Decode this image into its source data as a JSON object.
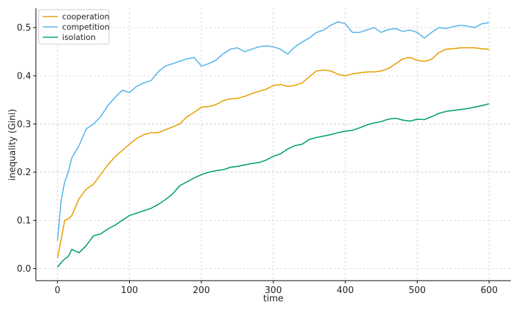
{
  "chart_data": {
    "type": "line",
    "title": "",
    "xlabel": "time",
    "ylabel": "inequality (Gini)",
    "xlim": [
      -30,
      630
    ],
    "ylim": [
      -0.025,
      0.54
    ],
    "xticks": [
      0,
      100,
      200,
      300,
      400,
      500,
      600
    ],
    "yticks": [
      0.0,
      0.1,
      0.2,
      0.3,
      0.4,
      0.5
    ],
    "xtick_labels": [
      "0",
      "100",
      "200",
      "300",
      "400",
      "500",
      "600"
    ],
    "ytick_labels": [
      "0.0",
      "0.1",
      "0.2",
      "0.3",
      "0.4",
      "0.5"
    ],
    "grid": true,
    "legend_position": "top-left",
    "series": [
      {
        "name": "cooperation",
        "color": "#E69F00",
        "x": [
          0,
          5,
          10,
          15,
          20,
          30,
          40,
          50,
          60,
          70,
          80,
          90,
          100,
          110,
          120,
          130,
          140,
          150,
          160,
          170,
          180,
          190,
          200,
          210,
          220,
          230,
          240,
          250,
          260,
          270,
          280,
          290,
          300,
          310,
          320,
          330,
          340,
          350,
          360,
          370,
          380,
          390,
          400,
          410,
          420,
          430,
          440,
          450,
          460,
          470,
          480,
          490,
          500,
          510,
          520,
          530,
          540,
          550,
          560,
          570,
          580,
          590,
          600
        ],
        "values": [
          0.022,
          0.06,
          0.1,
          0.103,
          0.11,
          0.145,
          0.165,
          0.175,
          0.195,
          0.215,
          0.232,
          0.245,
          0.258,
          0.27,
          0.278,
          0.282,
          0.282,
          0.288,
          0.294,
          0.3,
          0.315,
          0.324,
          0.335,
          0.336,
          0.34,
          0.348,
          0.352,
          0.353,
          0.357,
          0.363,
          0.368,
          0.372,
          0.38,
          0.382,
          0.378,
          0.38,
          0.385,
          0.398,
          0.41,
          0.412,
          0.41,
          0.403,
          0.4,
          0.404,
          0.406,
          0.408,
          0.408,
          0.41,
          0.415,
          0.425,
          0.435,
          0.438,
          0.432,
          0.43,
          0.434,
          0.448,
          0.455,
          0.456,
          0.458,
          0.458,
          0.458,
          0.456,
          0.455
        ]
      },
      {
        "name": "competition",
        "color": "#56B4E9",
        "x": [
          0,
          5,
          10,
          15,
          20,
          30,
          40,
          50,
          60,
          70,
          80,
          90,
          100,
          110,
          120,
          130,
          140,
          150,
          160,
          170,
          180,
          190,
          200,
          210,
          220,
          230,
          240,
          250,
          260,
          270,
          280,
          290,
          300,
          310,
          320,
          330,
          340,
          350,
          360,
          370,
          380,
          390,
          400,
          410,
          420,
          430,
          440,
          450,
          460,
          470,
          480,
          490,
          500,
          510,
          520,
          530,
          540,
          550,
          560,
          570,
          580,
          590,
          600
        ],
        "values": [
          0.058,
          0.14,
          0.18,
          0.2,
          0.23,
          0.255,
          0.29,
          0.3,
          0.315,
          0.338,
          0.355,
          0.37,
          0.365,
          0.378,
          0.385,
          0.39,
          0.408,
          0.42,
          0.425,
          0.43,
          0.435,
          0.438,
          0.42,
          0.425,
          0.432,
          0.445,
          0.455,
          0.458,
          0.45,
          0.455,
          0.46,
          0.462,
          0.46,
          0.455,
          0.445,
          0.46,
          0.47,
          0.478,
          0.49,
          0.495,
          0.505,
          0.512,
          0.508,
          0.49,
          0.49,
          0.495,
          0.5,
          0.49,
          0.496,
          0.498,
          0.492,
          0.495,
          0.49,
          0.478,
          0.49,
          0.5,
          0.498,
          0.502,
          0.505,
          0.503,
          0.5,
          0.508,
          0.51
        ]
      },
      {
        "name": "isolation",
        "color": "#009E73",
        "x": [
          0,
          5,
          10,
          15,
          20,
          30,
          40,
          50,
          60,
          70,
          80,
          90,
          100,
          110,
          120,
          130,
          140,
          150,
          160,
          170,
          180,
          190,
          200,
          210,
          220,
          230,
          240,
          250,
          260,
          270,
          280,
          290,
          300,
          310,
          320,
          330,
          340,
          350,
          360,
          370,
          380,
          390,
          400,
          410,
          420,
          430,
          440,
          450,
          460,
          470,
          480,
          490,
          500,
          510,
          520,
          530,
          540,
          550,
          560,
          570,
          580,
          590,
          600
        ],
        "values": [
          0.003,
          0.012,
          0.02,
          0.025,
          0.04,
          0.033,
          0.048,
          0.068,
          0.072,
          0.082,
          0.09,
          0.1,
          0.11,
          0.115,
          0.12,
          0.125,
          0.133,
          0.143,
          0.155,
          0.172,
          0.18,
          0.188,
          0.195,
          0.2,
          0.203,
          0.205,
          0.21,
          0.212,
          0.215,
          0.218,
          0.22,
          0.225,
          0.233,
          0.238,
          0.248,
          0.255,
          0.258,
          0.268,
          0.272,
          0.275,
          0.278,
          0.282,
          0.285,
          0.287,
          0.292,
          0.298,
          0.302,
          0.305,
          0.31,
          0.312,
          0.308,
          0.306,
          0.31,
          0.309,
          0.315,
          0.322,
          0.326,
          0.328,
          0.33,
          0.332,
          0.335,
          0.338,
          0.342
        ]
      }
    ]
  }
}
